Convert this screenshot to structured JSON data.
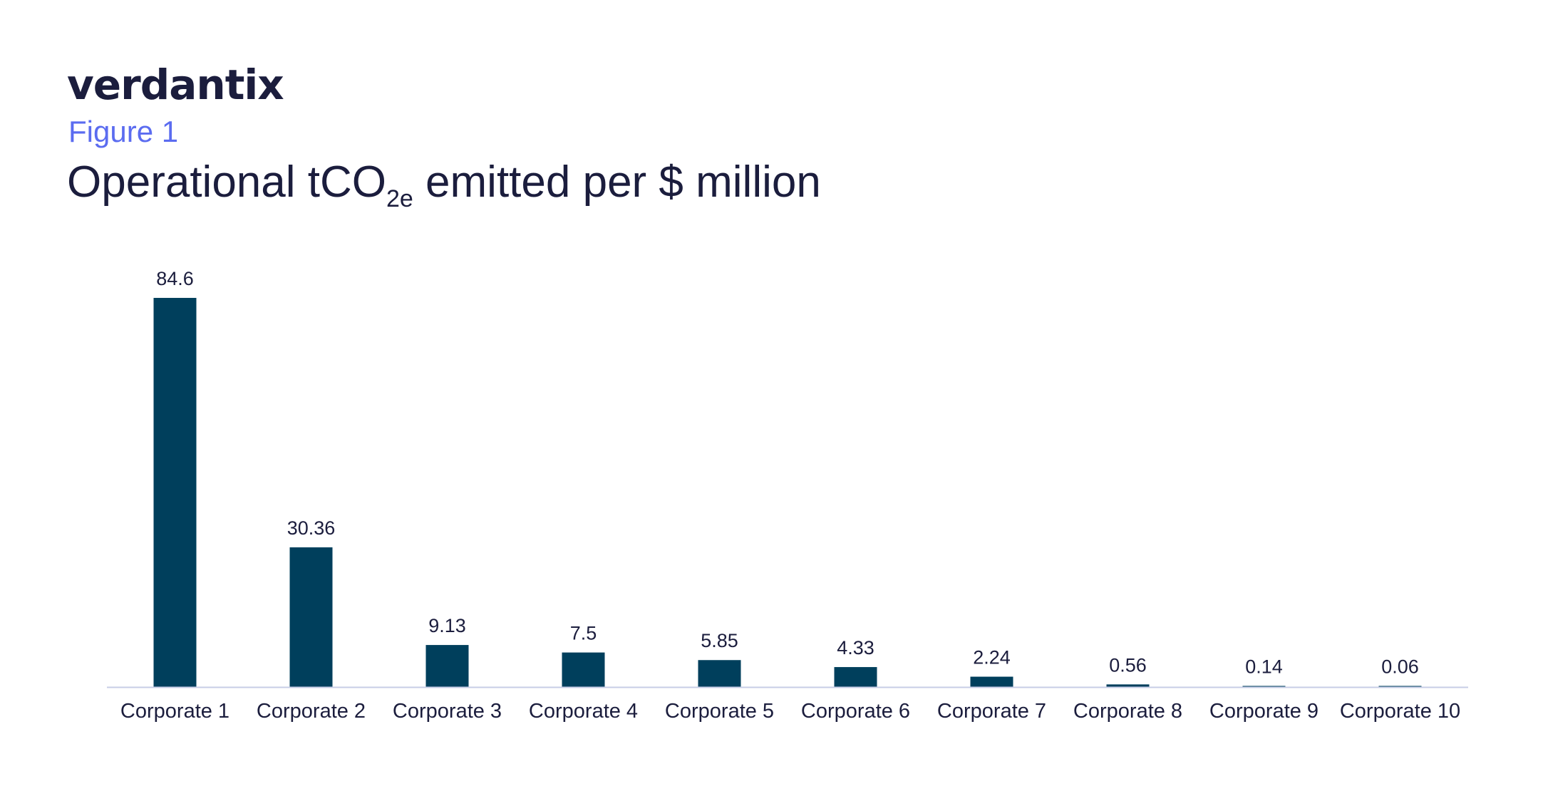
{
  "logo": "verdantix",
  "figure_label": "Figure 1",
  "title": {
    "main": "Operational tCO",
    "sub": "2e",
    "rest": " emitted per $ million"
  },
  "colors": {
    "bar": "#003f5c",
    "axis": "#c7cde6",
    "text": "#1b1d3d",
    "figure_label": "#5b6cf0"
  },
  "chart_data": {
    "type": "bar",
    "title": "Operational tCO2e emitted per $ million",
    "categories": [
      "Corporate 1",
      "Corporate 2",
      "Corporate 3",
      "Corporate 4",
      "Corporate 5",
      "Corporate 6",
      "Corporate 7",
      "Corporate 8",
      "Corporate 9",
      "Corporate 10"
    ],
    "values": [
      84.6,
      30.36,
      9.13,
      7.5,
      5.85,
      4.33,
      2.24,
      0.56,
      0.14,
      0.06
    ],
    "value_labels": [
      "84.6",
      "30.36",
      "9.13",
      "7.5",
      "5.85",
      "4.33",
      "2.24",
      "0.56",
      "0.14",
      "0.06"
    ],
    "xlabel": "",
    "ylabel": "",
    "ylim": [
      0,
      84.6
    ],
    "grid": false,
    "legend": "none"
  }
}
